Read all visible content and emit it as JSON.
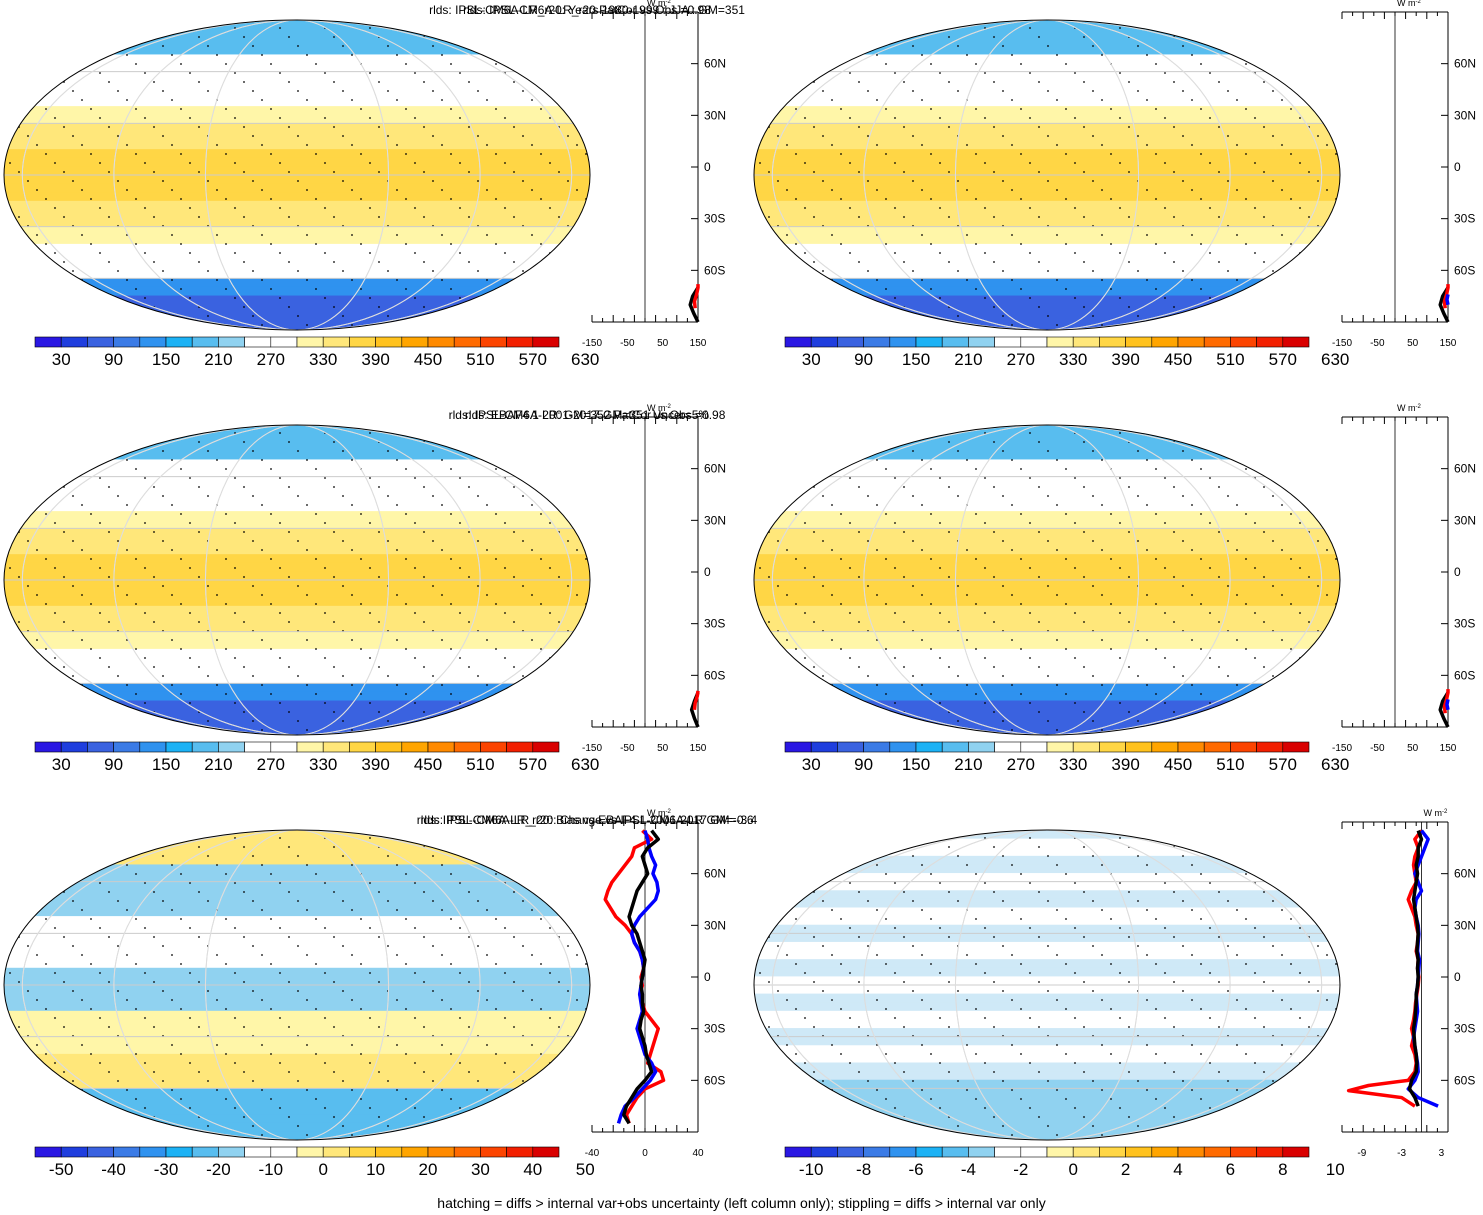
{
  "footer": "hatching = diffs > internal var+obs uncertainty (left column only); stippling = diffs > internal var only",
  "unit_label": "W m",
  "unit_sup": "-2",
  "lat_ticks": [
    "60N",
    "30N",
    "0",
    "30S",
    "60S"
  ],
  "colors": {
    "abs_scale": [
      "#2a17e3",
      "#1f3ede",
      "#3a62e0",
      "#3b7be6",
      "#2f92ef",
      "#1cb2f5",
      "#58bdef",
      "#90d2f0",
      "#ffffff",
      "#ffffff",
      "#fff6a8",
      "#ffe77a",
      "#ffd645",
      "#ffc21e",
      "#ffa500",
      "#ff8a00",
      "#ff6a00",
      "#fc4400",
      "#f21f00",
      "#d90000"
    ],
    "diff_scale": [
      "#2a17e3",
      "#1f3ede",
      "#3a62e0",
      "#3b7be6",
      "#2f92ef",
      "#1cb2f5",
      "#58bdef",
      "#90d2f0",
      "#ffffff",
      "#ffffff",
      "#fff6a8",
      "#ffe77a",
      "#ffd645",
      "#ffc21e",
      "#ffa500",
      "#ff8a00",
      "#ff6a00",
      "#fc4400",
      "#f21f00",
      "#d90000"
    ],
    "zonal_model": "#000000",
    "zonal_obs": "#ff0000",
    "zonal_other": "#0000ff"
  },
  "chart_data": [
    {
      "type": "heatmap",
      "id": "p1",
      "title": "rlds: IPSL-CM6A-LR_r20: Years 1980-1999 : JJA : GM=351",
      "colorbar_ticks": [
        "30",
        "90",
        "150",
        "210",
        "270",
        "330",
        "390",
        "450",
        "510",
        "570",
        "630"
      ],
      "colorbar_levels": 20,
      "zonal_xticks": [
        "-150",
        "-50",
        "50",
        "150"
      ],
      "zonal_xlim": [
        -150,
        150
      ],
      "zonal_series": [
        {
          "color": "zonal_model",
          "lat": [
            -90,
            -85,
            -80,
            -75,
            -70
          ],
          "values": [
            150,
            138,
            128,
            135,
            150
          ]
        },
        {
          "color": "zonal_obs",
          "lat": [
            -82,
            -78,
            -74,
            -70,
            -68
          ],
          "values": [
            142,
            140,
            146,
            150,
            150
          ]
        }
      ]
    },
    {
      "type": "heatmap",
      "id": "p2",
      "title": "rlds: IPSL-CM6A-LR_r20 PatCor vs Obs =0.98",
      "colorbar_ticks": [
        "30",
        "90",
        "150",
        "210",
        "270",
        "330",
        "390",
        "450",
        "510",
        "570",
        "630"
      ],
      "colorbar_levels": 20,
      "zonal_xticks": [
        "-150",
        "-50",
        "50",
        "150"
      ],
      "zonal_xlim": [
        -150,
        150
      ],
      "zonal_series": [
        {
          "color": "zonal_model",
          "lat": [
            -90,
            -85,
            -80,
            -75,
            -70
          ],
          "values": [
            150,
            138,
            128,
            135,
            150
          ]
        },
        {
          "color": "zonal_obs",
          "lat": [
            -82,
            -78,
            -74,
            -70,
            -68
          ],
          "values": [
            142,
            140,
            146,
            150,
            150
          ]
        },
        {
          "color": "zonal_other",
          "lat": [
            -80,
            -77,
            -74
          ],
          "values": [
            150,
            147,
            150
          ]
        }
      ]
    },
    {
      "type": "heatmap",
      "id": "p3",
      "title": "rlds: EBAF4.1 2001-2017 GM=351 Uncer=5%",
      "colorbar_ticks": [
        "30",
        "90",
        "150",
        "210",
        "270",
        "330",
        "390",
        "450",
        "510",
        "570",
        "630"
      ],
      "colorbar_levels": 20,
      "zonal_xticks": [
        "-150",
        "-50",
        "50",
        "150"
      ],
      "zonal_xlim": [
        -150,
        150
      ],
      "zonal_series": [
        {
          "color": "zonal_model",
          "lat": [
            -90,
            -85,
            -80,
            -75,
            -70
          ],
          "values": [
            150,
            140,
            132,
            140,
            150
          ]
        },
        {
          "color": "zonal_obs",
          "lat": [
            -80,
            -76,
            -72,
            -69
          ],
          "values": [
            140,
            142,
            148,
            150
          ]
        }
      ]
    },
    {
      "type": "heatmap",
      "id": "p4",
      "title": "rlds: IPSL-CM6A-LR: GM=352 PatCor vs Obs =0.98",
      "colorbar_ticks": [
        "30",
        "90",
        "150",
        "210",
        "270",
        "330",
        "390",
        "450",
        "510",
        "570",
        "630"
      ],
      "colorbar_levels": 20,
      "zonal_xticks": [
        "-150",
        "-50",
        "50",
        "150"
      ],
      "zonal_xlim": [
        -150,
        150
      ],
      "zonal_series": [
        {
          "color": "zonal_model",
          "lat": [
            -90,
            -85,
            -80,
            -75,
            -70
          ],
          "values": [
            150,
            138,
            128,
            135,
            150
          ]
        },
        {
          "color": "zonal_obs",
          "lat": [
            -82,
            -78,
            -74,
            -70,
            -68
          ],
          "values": [
            142,
            140,
            146,
            150,
            150
          ]
        },
        {
          "color": "zonal_other",
          "lat": [
            -80,
            -77,
            -74
          ],
          "values": [
            150,
            147,
            150
          ]
        }
      ]
    },
    {
      "type": "heatmap",
      "id": "p5",
      "title": "rlds: IPSL-CM6A-LR_r20: Bias vs EBAF4.1 2001-2017 GM=-3.4",
      "colorbar_ticks": [
        "-50",
        "-40",
        "-30",
        "-20",
        "-10",
        "0",
        "10",
        "20",
        "30",
        "40",
        "50"
      ],
      "colorbar_levels": 20,
      "zonal_xticks": [
        "-40",
        "0",
        "40"
      ],
      "zonal_xlim": [
        -40,
        40
      ],
      "zonal_series": [
        {
          "color": "zonal_obs",
          "lat": [
            85,
            80,
            75,
            70,
            65,
            60,
            55,
            50,
            45,
            40,
            35,
            30,
            25,
            20,
            15,
            10,
            5,
            0,
            -5,
            -10,
            -15,
            -20,
            -25,
            -30,
            -35,
            -40,
            -45,
            -50,
            -55,
            -60,
            -65,
            -70,
            -75,
            -80,
            -85
          ],
          "values": [
            -2,
            5,
            -8,
            -10,
            -15,
            -20,
            -25,
            -28,
            -30,
            -26,
            -22,
            -15,
            -10,
            -8,
            -4,
            -2,
            -1,
            -3,
            -2,
            -4,
            -2,
            0,
            5,
            10,
            8,
            6,
            4,
            2,
            12,
            14,
            0,
            -6,
            -10,
            -14,
            -12
          ]
        },
        {
          "color": "zonal_other",
          "lat": [
            85,
            80,
            75,
            70,
            65,
            60,
            55,
            50,
            45,
            40,
            35,
            30,
            25,
            20,
            15,
            10,
            5,
            0,
            -5,
            -10,
            -15,
            -20,
            -25,
            -30,
            -35,
            -40,
            -45,
            -50,
            -55,
            -60,
            -65,
            -70,
            -75,
            -80,
            -85
          ],
          "values": [
            0,
            2,
            3,
            5,
            8,
            6,
            9,
            10,
            8,
            2,
            -4,
            -8,
            -10,
            -8,
            -4,
            -2,
            -1,
            -2,
            -3,
            -4,
            -3,
            -2,
            -4,
            -6,
            -4,
            -2,
            0,
            5,
            8,
            4,
            -2,
            -8,
            -15,
            -18,
            -20
          ]
        },
        {
          "color": "zonal_model",
          "lat": [
            85,
            80,
            75,
            70,
            65,
            60,
            55,
            50,
            45,
            40,
            35,
            30,
            25,
            20,
            15,
            10,
            5,
            0,
            -5,
            -10,
            -15,
            -20,
            -25,
            -30,
            -35,
            -40,
            -45,
            -50,
            -55,
            -60,
            -65,
            -70,
            -75,
            -80,
            -85
          ],
          "values": [
            5,
            10,
            2,
            -2,
            0,
            2,
            -2,
            -6,
            -8,
            -10,
            -12,
            -10,
            -6,
            -4,
            -2,
            0,
            -1,
            -2,
            -3,
            -2,
            -2,
            -1,
            -3,
            -4,
            -2,
            0,
            1,
            3,
            5,
            0,
            -6,
            -10,
            -14,
            -16,
            -12
          ]
        }
      ]
    },
    {
      "type": "heatmap",
      "id": "p6",
      "title": "rlds: IPSL-CM6A-LR_r20: Change vs IPSL-CM6A-LR GM=-0.6",
      "colorbar_ticks": [
        "-10",
        "-8",
        "-6",
        "-4",
        "-2",
        "0",
        "2",
        "4",
        "6",
        "8",
        "10"
      ],
      "colorbar_levels": 20,
      "zonal_xticks": [
        "-9",
        "-3",
        "3"
      ],
      "zonal_xlim": [
        -12,
        4
      ],
      "zonal_series": [
        {
          "color": "zonal_obs",
          "lat": [
            85,
            80,
            75,
            70,
            65,
            60,
            55,
            50,
            45,
            40,
            35,
            30,
            25,
            20,
            15,
            10,
            5,
            0,
            -5,
            -10,
            -15,
            -20,
            -25,
            -30,
            -35,
            -40,
            -45,
            -50,
            -55,
            -60,
            -63,
            -66,
            -70,
            -75
          ],
          "values": [
            0,
            -1,
            -0.5,
            -1,
            -1.2,
            -1,
            -0.8,
            -1.5,
            -2,
            -1.5,
            -1,
            -0.8,
            -0.5,
            -0.6,
            -0.8,
            -0.5,
            -0.6,
            -0.4,
            -0.5,
            -0.7,
            -0.9,
            -1,
            -1.2,
            -1.5,
            -1.2,
            -1.5,
            -1,
            -0.8,
            -1,
            -2,
            -8,
            -11,
            -3,
            -1
          ]
        },
        {
          "color": "zonal_other",
          "lat": [
            85,
            80,
            75,
            70,
            65,
            60,
            55,
            50,
            45,
            40,
            35,
            30,
            25,
            20,
            15,
            10,
            5,
            0,
            -5,
            -10,
            -15,
            -20,
            -25,
            -30,
            -35,
            -40,
            -45,
            -50,
            -55,
            -60,
            -65,
            -70,
            -75
          ],
          "values": [
            0,
            1,
            0.5,
            0,
            -0.5,
            -1,
            -0.5,
            0,
            -0.8,
            -1,
            -0.8,
            -0.5,
            -0.4,
            -0.5,
            -0.6,
            -0.3,
            -0.4,
            -0.5,
            -0.6,
            -0.8,
            -0.7,
            -0.6,
            -0.8,
            -1,
            -1.2,
            -1,
            -0.8,
            -0.6,
            -0.5,
            -1,
            -2,
            -0.5,
            2.5
          ]
        },
        {
          "color": "zonal_model",
          "lat": [
            85,
            80,
            75,
            70,
            65,
            60,
            55,
            50,
            45,
            40,
            35,
            30,
            25,
            20,
            15,
            10,
            5,
            0,
            -5,
            -10,
            -15,
            -20,
            -25,
            -30,
            -35,
            -40,
            -45,
            -50,
            -55,
            -60,
            -65,
            -70,
            -75
          ],
          "values": [
            -0.5,
            0,
            -0.5,
            -0.5,
            -0.8,
            -0.6,
            -0.8,
            -1,
            -1.2,
            -1,
            -0.8,
            -0.6,
            -0.5,
            -0.6,
            -0.7,
            -0.5,
            -0.6,
            -0.5,
            -0.6,
            -0.8,
            -0.8,
            -0.9,
            -1,
            -1.2,
            -1.1,
            -1,
            -0.8,
            -0.7,
            -0.8,
            -1.5,
            -1.8,
            -1,
            -0.5
          ]
        }
      ]
    }
  ]
}
